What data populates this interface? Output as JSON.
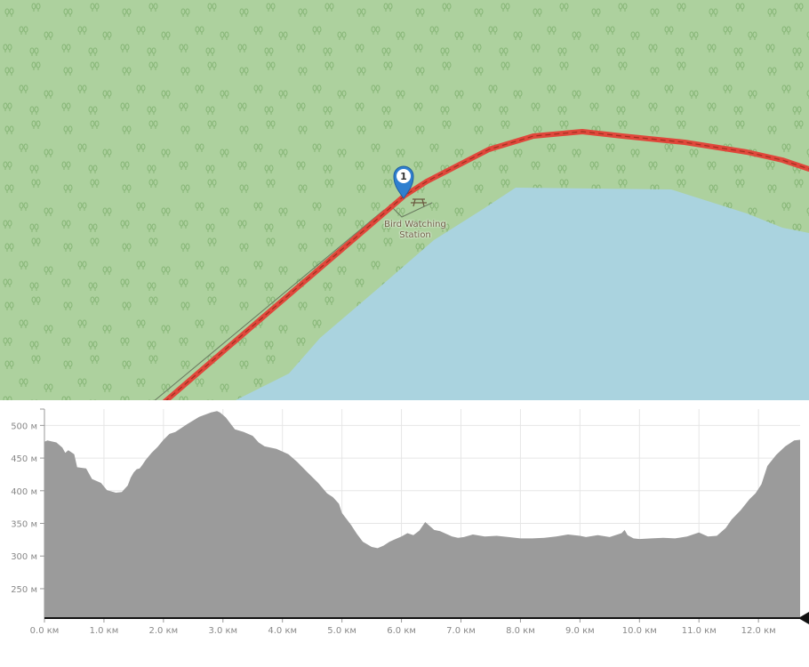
{
  "map": {
    "colors": {
      "forest": "#add19e",
      "water": "#aad3df",
      "route": "#e0473b",
      "route_dash": "#a03020",
      "marker": "#2f7fcf"
    },
    "marker": {
      "label": "1",
      "icon": "map-marker-icon"
    },
    "poi": {
      "icon": "picnic-table-icon",
      "name_line1": "Bird Watching",
      "name_line2": "Station"
    }
  },
  "elevation_profile": {
    "y_ticks": [
      "500 м",
      "450 м",
      "400 м",
      "350 м",
      "300 м",
      "250 м"
    ],
    "x_ticks": [
      "0.0 км",
      "1.0 км",
      "2.0 км",
      "3.0 км",
      "4.0 км",
      "5.0 км",
      "6.0 км",
      "7.0 км",
      "8.0 км",
      "9.0 км",
      "10.0 км",
      "11.0 км",
      "12.0 км"
    ],
    "fill_color": "#9b9b9b",
    "position_marker_icon": "position-triangle-icon"
  },
  "chart_data": {
    "type": "area",
    "xlabel": "",
    "ylabel": "",
    "x_unit": "км",
    "y_unit": "м",
    "xlim": [
      0,
      12.7
    ],
    "ylim": [
      205,
      525
    ],
    "grid": true,
    "x": [
      0,
      0.05,
      0.2,
      0.3,
      0.35,
      0.4,
      0.5,
      0.55,
      0.7,
      0.8,
      0.95,
      1.05,
      1.2,
      1.3,
      1.4,
      1.45,
      1.5,
      1.55,
      1.6,
      1.65,
      1.7,
      1.8,
      1.9,
      2.0,
      2.1,
      2.2,
      2.4,
      2.6,
      2.8,
      2.9,
      2.95,
      3.0,
      3.05,
      3.1,
      3.2,
      3.35,
      3.5,
      3.6,
      3.7,
      3.9,
      4.1,
      4.25,
      4.4,
      4.6,
      4.75,
      4.85,
      4.95,
      5.0,
      5.15,
      5.25,
      5.35,
      5.5,
      5.6,
      5.7,
      5.8,
      5.9,
      6.0,
      6.1,
      6.2,
      6.3,
      6.4,
      6.55,
      6.65,
      6.75,
      6.85,
      6.95,
      7.05,
      7.2,
      7.4,
      7.6,
      7.8,
      8.0,
      8.2,
      8.4,
      8.6,
      8.8,
      9.0,
      9.1,
      9.3,
      9.5,
      9.7,
      9.75,
      9.8,
      9.9,
      10.0,
      10.2,
      10.4,
      10.6,
      10.8,
      11.0,
      11.15,
      11.3,
      11.45,
      11.55,
      11.7,
      11.85,
      11.95,
      12.05,
      12.15,
      12.3,
      12.45,
      12.6,
      12.7
    ],
    "series": [
      {
        "values": [
          475,
          477,
          474,
          466,
          458,
          462,
          456,
          436,
          434,
          418,
          412,
          401,
          397,
          398,
          408,
          420,
          428,
          433,
          434,
          440,
          447,
          458,
          467,
          478,
          487,
          490,
          502,
          513,
          520,
          522,
          520,
          516,
          512,
          506,
          494,
          490,
          484,
          474,
          468,
          464,
          456,
          444,
          430,
          412,
          396,
          390,
          380,
          366,
          348,
          334,
          322,
          314,
          312,
          316,
          322,
          326,
          330,
          335,
          332,
          339,
          352,
          340,
          338,
          334,
          330,
          328,
          329,
          333,
          330,
          331,
          329,
          327,
          327,
          328,
          330,
          333,
          331,
          329,
          332,
          329,
          335,
          340,
          332,
          327,
          326,
          327,
          328,
          327,
          330,
          336,
          330,
          331,
          343,
          356,
          370,
          387,
          396,
          410,
          438,
          455,
          468,
          477,
          478
        ]
      }
    ]
  }
}
